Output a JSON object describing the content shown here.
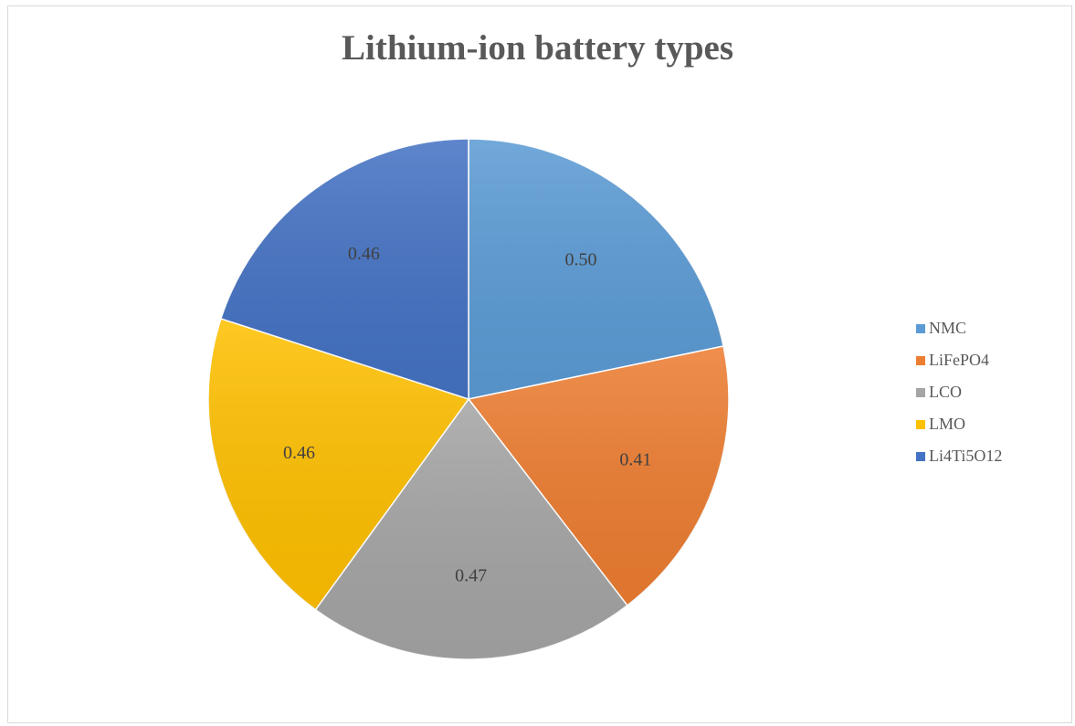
{
  "chart_data": {
    "type": "pie",
    "title": "Lithium-ion battery types",
    "categories": [
      "NMC",
      "LiFePO4",
      "LCO",
      "LMO",
      "Li4Ti5O12"
    ],
    "values": [
      0.5,
      0.41,
      0.47,
      0.46,
      0.46
    ],
    "data_labels": [
      "0.50",
      "0.41",
      "0.47",
      "0.46",
      "0.46"
    ],
    "colors": [
      "#5B9BD5",
      "#ED7D31",
      "#A5A5A5",
      "#FFC000",
      "#4472C4"
    ],
    "start_angle": "12 o'clock",
    "direction": "clockwise",
    "legend_position": "right"
  }
}
